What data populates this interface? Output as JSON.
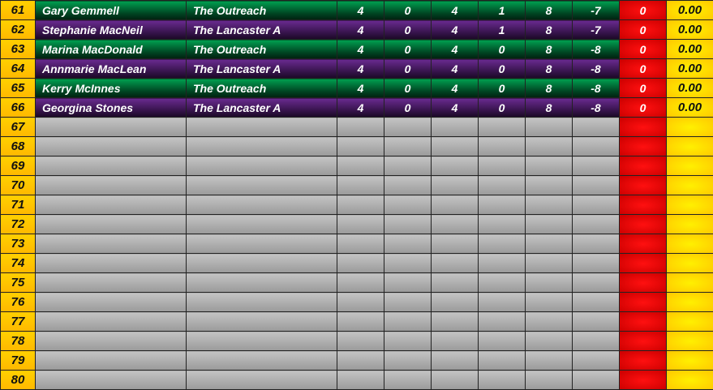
{
  "colors": {
    "green": "#006a35",
    "purple": "#4a1c66",
    "red": "#e00000",
    "yellow": "#ffd000",
    "empty": "#b0b0b0"
  },
  "rows": [
    {
      "pos": "61",
      "name": "Gary Gemmell",
      "team": "The Outreach",
      "c1": "4",
      "c2": "0",
      "c3": "4",
      "c4": "1",
      "c5": "8",
      "c6": "-7",
      "pts": "0",
      "avg": "0.00",
      "style": "green"
    },
    {
      "pos": "62",
      "name": "Stephanie MacNeil",
      "team": "The Lancaster A",
      "c1": "4",
      "c2": "0",
      "c3": "4",
      "c4": "1",
      "c5": "8",
      "c6": "-7",
      "pts": "0",
      "avg": "0.00",
      "style": "purple"
    },
    {
      "pos": "63",
      "name": "Marina MacDonald",
      "team": "The Outreach",
      "c1": "4",
      "c2": "0",
      "c3": "4",
      "c4": "0",
      "c5": "8",
      "c6": "-8",
      "pts": "0",
      "avg": "0.00",
      "style": "green"
    },
    {
      "pos": "64",
      "name": "Annmarie MacLean",
      "team": "The Lancaster A",
      "c1": "4",
      "c2": "0",
      "c3": "4",
      "c4": "0",
      "c5": "8",
      "c6": "-8",
      "pts": "0",
      "avg": "0.00",
      "style": "purple"
    },
    {
      "pos": "65",
      "name": "Kerry McInnes",
      "team": "The Outreach",
      "c1": "4",
      "c2": "0",
      "c3": "4",
      "c4": "0",
      "c5": "8",
      "c6": "-8",
      "pts": "0",
      "avg": "0.00",
      "style": "green"
    },
    {
      "pos": "66",
      "name": "Georgina Stones",
      "team": "The Lancaster A",
      "c1": "4",
      "c2": "0",
      "c3": "4",
      "c4": "0",
      "c5": "8",
      "c6": "-8",
      "pts": "0",
      "avg": "0.00",
      "style": "purple"
    },
    {
      "pos": "67",
      "style": "empty"
    },
    {
      "pos": "68",
      "style": "empty"
    },
    {
      "pos": "69",
      "style": "empty"
    },
    {
      "pos": "70",
      "style": "empty"
    },
    {
      "pos": "71",
      "style": "empty"
    },
    {
      "pos": "72",
      "style": "empty"
    },
    {
      "pos": "73",
      "style": "empty"
    },
    {
      "pos": "74",
      "style": "empty"
    },
    {
      "pos": "75",
      "style": "empty"
    },
    {
      "pos": "76",
      "style": "empty"
    },
    {
      "pos": "77",
      "style": "empty"
    },
    {
      "pos": "78",
      "style": "empty"
    },
    {
      "pos": "79",
      "style": "empty"
    },
    {
      "pos": "80",
      "style": "empty"
    }
  ]
}
